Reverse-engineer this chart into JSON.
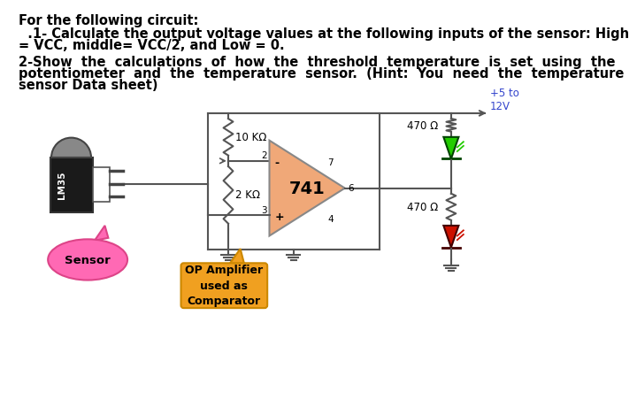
{
  "title_text": "For the following circuit:",
  "q1_line1": "  .1- Calculate the output voltage values at the following inputs of the sensor: High",
  "q1_line2": "= VCC, middle= VCC/2, and Low = 0.",
  "q2_line1": "2-Show  the  calculations  of  how  the  threshold  temperature  is  set  using  the",
  "q2_line2": "potentiometer  and  the  temperature  sensor.  (Hint:  You  need  the  temperature",
  "q2_line3": "sensor Data sheet)",
  "label_10k": "10 KΩ",
  "label_2k": "2 KΩ",
  "label_470_top": "470 Ω",
  "label_470_bot": "470 Ω",
  "label_741": "741",
  "label_vcc": "+5 to\n12V",
  "label_sensor": "Sensor",
  "label_op": "OP Amplifier\nused as\nComparator",
  "label_lm35": "LM35",
  "pin2": "2",
  "pin3": "3",
  "pin4": "4",
  "pin6": "6",
  "pin7": "7",
  "pin_minus": "-",
  "pin_plus": "+",
  "bg_color": "#ffffff",
  "text_color": "#000000",
  "lc": "#555555",
  "opamp_fill": "#f0a878",
  "opamp_edge": "#888888",
  "sensor_body_dark": "#1a1a1a",
  "sensor_tab_color": "#888888",
  "sensor_label_color": "#ffffff",
  "sensor_bubble_fill": "#ff69b4",
  "sensor_bubble_edge": "#dd4488",
  "op_label_fill": "#f0a020",
  "op_label_edge": "#cc8800",
  "led_green": "#22cc00",
  "led_green_edge": "#004400",
  "led_red": "#cc1100",
  "led_red_edge": "#440000",
  "vcc_text_color": "#3344cc"
}
